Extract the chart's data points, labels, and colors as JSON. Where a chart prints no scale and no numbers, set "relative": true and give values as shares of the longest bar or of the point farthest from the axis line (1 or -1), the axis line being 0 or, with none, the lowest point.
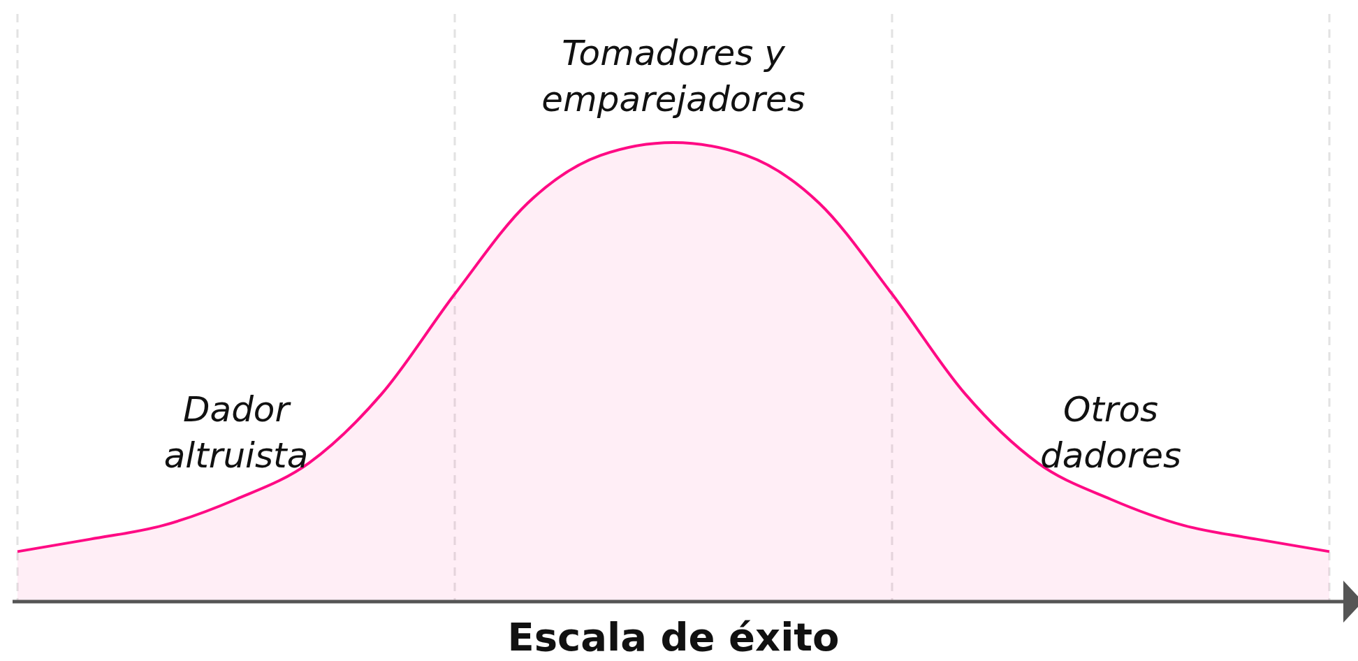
{
  "chart_data": {
    "type": "area",
    "relative": true,
    "xlabel": "Escala de éxito",
    "categories": [
      null,
      null,
      null,
      null,
      null,
      null,
      null,
      null,
      null,
      null,
      null,
      null,
      null,
      null,
      null,
      null,
      null,
      null,
      null
    ],
    "series": [
      {
        "color": "#ff0a84",
        "values": [
          0.109,
          0.136,
          0.166,
          0.223,
          0.302,
          0.453,
          0.67,
          0.868,
          0.972,
          1,
          0.972,
          0.868,
          0.67,
          0.453,
          0.302,
          0.223,
          0.166,
          0.136,
          0.109
        ]
      }
    ],
    "grid": "x",
    "annotations": [
      "Dador altruista",
      "Tomadores y emparejadores",
      "Otros dadores"
    ]
  }
}
